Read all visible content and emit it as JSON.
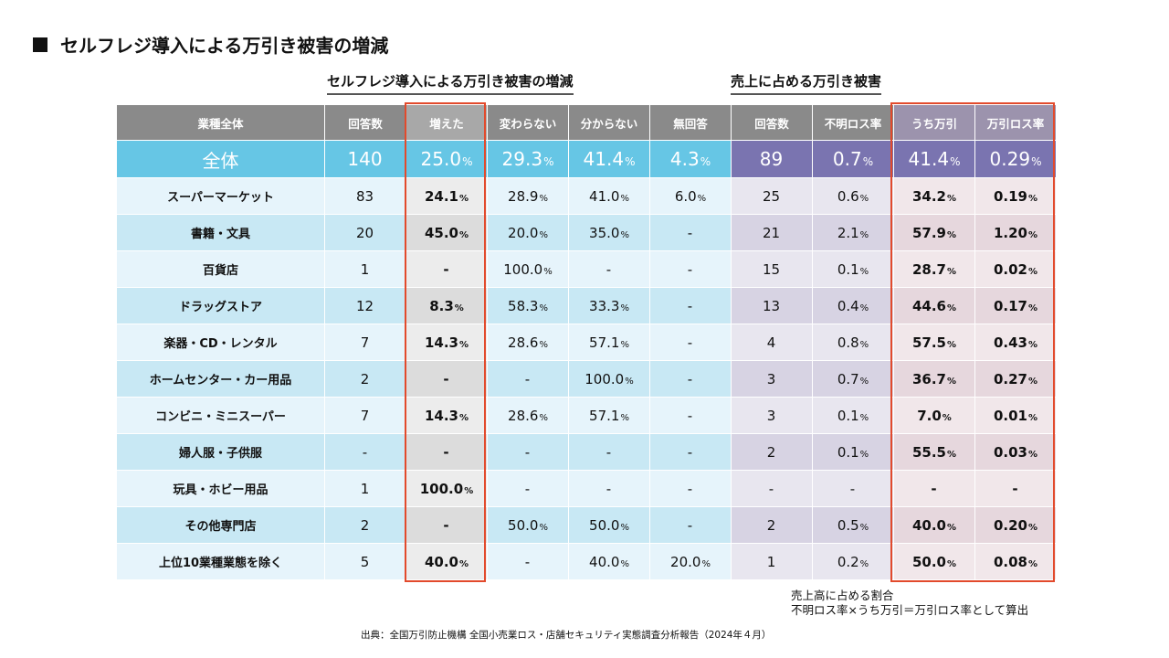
{
  "page": {
    "title": "セルフレジ導入による万引き被害の増減"
  },
  "group_headers": {
    "left": "セルフレジ導入による万引き被害の増減",
    "right": "売上に占める万引き被害"
  },
  "table": {
    "columns": [
      "業種全体",
      "回答数",
      "増えた",
      "変わらない",
      "分からない",
      "無回答",
      "回答数",
      "不明ロス率",
      "うち万引",
      "万引ロス率"
    ],
    "total": {
      "category": "全体",
      "cells": [
        {
          "v": "140",
          "u": ""
        },
        {
          "v": "25.0",
          "u": "%"
        },
        {
          "v": "29.3",
          "u": "%"
        },
        {
          "v": "41.4",
          "u": "%"
        },
        {
          "v": "4.3",
          "u": "%"
        },
        {
          "v": "89",
          "u": ""
        },
        {
          "v": "0.7",
          "u": "%"
        },
        {
          "v": "41.4",
          "u": "%"
        },
        {
          "v": "0.29",
          "u": "%"
        }
      ]
    },
    "rows": [
      {
        "category": "スーパーマーケット",
        "cells": [
          {
            "v": "83",
            "u": ""
          },
          {
            "v": "24.1",
            "u": "%"
          },
          {
            "v": "28.9",
            "u": "%"
          },
          {
            "v": "41.0",
            "u": "%"
          },
          {
            "v": "6.0",
            "u": "%"
          },
          {
            "v": "25",
            "u": ""
          },
          {
            "v": "0.6",
            "u": "%"
          },
          {
            "v": "34.2",
            "u": "%"
          },
          {
            "v": "0.19",
            "u": "%"
          }
        ]
      },
      {
        "category": "書籍・文具",
        "cells": [
          {
            "v": "20",
            "u": ""
          },
          {
            "v": "45.0",
            "u": "%"
          },
          {
            "v": "20.0",
            "u": "%"
          },
          {
            "v": "35.0",
            "u": "%"
          },
          {
            "v": "-",
            "u": ""
          },
          {
            "v": "21",
            "u": ""
          },
          {
            "v": "2.1",
            "u": "%"
          },
          {
            "v": "57.9",
            "u": "%"
          },
          {
            "v": "1.20",
            "u": "%"
          }
        ]
      },
      {
        "category": "百貨店",
        "cells": [
          {
            "v": "1",
            "u": ""
          },
          {
            "v": "-",
            "u": ""
          },
          {
            "v": "100.0",
            "u": "%"
          },
          {
            "v": "-",
            "u": ""
          },
          {
            "v": "-",
            "u": ""
          },
          {
            "v": "15",
            "u": ""
          },
          {
            "v": "0.1",
            "u": "%"
          },
          {
            "v": "28.7",
            "u": "%"
          },
          {
            "v": "0.02",
            "u": "%"
          }
        ]
      },
      {
        "category": "ドラッグストア",
        "cells": [
          {
            "v": "12",
            "u": ""
          },
          {
            "v": "8.3",
            "u": "%"
          },
          {
            "v": "58.3",
            "u": "%"
          },
          {
            "v": "33.3",
            "u": "%"
          },
          {
            "v": "-",
            "u": ""
          },
          {
            "v": "13",
            "u": ""
          },
          {
            "v": "0.4",
            "u": "%"
          },
          {
            "v": "44.6",
            "u": "%"
          },
          {
            "v": "0.17",
            "u": "%"
          }
        ]
      },
      {
        "category": "楽器・CD・レンタル",
        "cells": [
          {
            "v": "7",
            "u": ""
          },
          {
            "v": "14.3",
            "u": "%"
          },
          {
            "v": "28.6",
            "u": "%"
          },
          {
            "v": "57.1",
            "u": "%"
          },
          {
            "v": "-",
            "u": ""
          },
          {
            "v": "4",
            "u": ""
          },
          {
            "v": "0.8",
            "u": "%"
          },
          {
            "v": "57.5",
            "u": "%"
          },
          {
            "v": "0.43",
            "u": "%"
          }
        ]
      },
      {
        "category": "ホームセンター・カー用品",
        "cells": [
          {
            "v": "2",
            "u": ""
          },
          {
            "v": "-",
            "u": ""
          },
          {
            "v": "-",
            "u": ""
          },
          {
            "v": "100.0",
            "u": "%"
          },
          {
            "v": "-",
            "u": ""
          },
          {
            "v": "3",
            "u": ""
          },
          {
            "v": "0.7",
            "u": "%"
          },
          {
            "v": "36.7",
            "u": "%"
          },
          {
            "v": "0.27",
            "u": "%"
          }
        ]
      },
      {
        "category": "コンビニ・ミニスーパー",
        "cells": [
          {
            "v": "7",
            "u": ""
          },
          {
            "v": "14.3",
            "u": "%"
          },
          {
            "v": "28.6",
            "u": "%"
          },
          {
            "v": "57.1",
            "u": "%"
          },
          {
            "v": "-",
            "u": ""
          },
          {
            "v": "3",
            "u": ""
          },
          {
            "v": "0.1",
            "u": "%"
          },
          {
            "v": "7.0",
            "u": "%"
          },
          {
            "v": "0.01",
            "u": "%"
          }
        ]
      },
      {
        "category": "婦人服・子供服",
        "cells": [
          {
            "v": "-",
            "u": ""
          },
          {
            "v": "-",
            "u": ""
          },
          {
            "v": "-",
            "u": ""
          },
          {
            "v": "-",
            "u": ""
          },
          {
            "v": "-",
            "u": ""
          },
          {
            "v": "2",
            "u": ""
          },
          {
            "v": "0.1",
            "u": "%"
          },
          {
            "v": "55.5",
            "u": "%"
          },
          {
            "v": "0.03",
            "u": "%"
          }
        ]
      },
      {
        "category": "玩具・ホビー用品",
        "cells": [
          {
            "v": "1",
            "u": ""
          },
          {
            "v": "100.0",
            "u": "%"
          },
          {
            "v": "-",
            "u": ""
          },
          {
            "v": "-",
            "u": ""
          },
          {
            "v": "-",
            "u": ""
          },
          {
            "v": "-",
            "u": ""
          },
          {
            "v": "-",
            "u": ""
          },
          {
            "v": "-",
            "u": ""
          },
          {
            "v": "-",
            "u": ""
          }
        ]
      },
      {
        "category": "その他専門店",
        "cells": [
          {
            "v": "2",
            "u": ""
          },
          {
            "v": "-",
            "u": ""
          },
          {
            "v": "50.0",
            "u": "%"
          },
          {
            "v": "50.0",
            "u": "%"
          },
          {
            "v": "-",
            "u": ""
          },
          {
            "v": "2",
            "u": ""
          },
          {
            "v": "0.5",
            "u": "%"
          },
          {
            "v": "40.0",
            "u": "%"
          },
          {
            "v": "0.20",
            "u": "%"
          }
        ]
      },
      {
        "category": "上位10業種業態を除く",
        "cells": [
          {
            "v": "5",
            "u": ""
          },
          {
            "v": "40.0",
            "u": "%"
          },
          {
            "v": "-",
            "u": ""
          },
          {
            "v": "40.0",
            "u": "%"
          },
          {
            "v": "20.0",
            "u": "%"
          },
          {
            "v": "1",
            "u": ""
          },
          {
            "v": "0.2",
            "u": "%"
          },
          {
            "v": "50.0",
            "u": "%"
          },
          {
            "v": "0.08",
            "u": "%"
          }
        ]
      }
    ]
  },
  "note": {
    "line1": "売上高に占める割合",
    "line2": "不明ロス率×うち万引＝万引ロス率として算出"
  },
  "source": "出典：全国万引防止機構 全国小売業ロス・店舗セキュリティ実態調査分析報告（2024年４月）",
  "colors": {
    "highlight": "#e24a2c",
    "total_blue": "#66c6e5",
    "total_purple": "#7a74b0",
    "header_gray": "#8a8a8a"
  }
}
